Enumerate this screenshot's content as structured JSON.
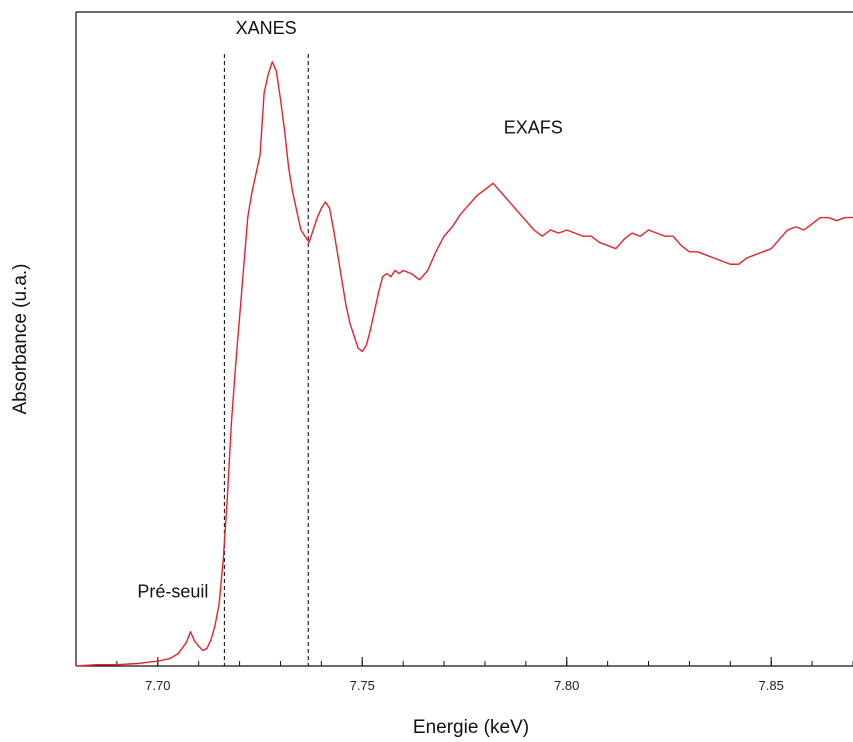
{
  "chart_data": {
    "type": "line",
    "title": "",
    "xlabel": "Energie (keV)",
    "ylabel": "Absorbance (u.a.)",
    "xlim": [
      7.68,
      7.87
    ],
    "ylim": [
      0,
      1.05
    ],
    "yticks_shown": false,
    "grid": false,
    "legend": "none",
    "xticks": [
      {
        "value": 7.7,
        "label": "7.70"
      },
      {
        "value": 7.75,
        "label": "7.75"
      },
      {
        "value": 7.8,
        "label": "7.80"
      },
      {
        "value": 7.85,
        "label": "7.85"
      }
    ],
    "minor_tick_step": 0.01,
    "annotations": [
      {
        "text": "XANES",
        "x": 7.7265,
        "y": 1.015
      },
      {
        "text": "EXAFS",
        "x": 7.7918,
        "y": 0.855
      },
      {
        "text": "Pré-seuil",
        "x": 7.7037,
        "y": 0.11
      }
    ],
    "region_boundaries": [
      7.7163,
      7.7368
    ],
    "series": [
      {
        "color": "#e8212b",
        "x": [
          7.68,
          7.685,
          7.69,
          7.695,
          7.7,
          7.703,
          7.705,
          7.707,
          7.708,
          7.709,
          7.71,
          7.711,
          7.712,
          7.713,
          7.714,
          7.715,
          7.716,
          7.717,
          7.718,
          7.719,
          7.72,
          7.721,
          7.722,
          7.723,
          7.724,
          7.725,
          7.726,
          7.727,
          7.728,
          7.729,
          7.73,
          7.731,
          7.732,
          7.733,
          7.734,
          7.735,
          7.736,
          7.737,
          7.738,
          7.739,
          7.74,
          7.741,
          7.742,
          7.743,
          7.744,
          7.745,
          7.746,
          7.747,
          7.748,
          7.749,
          7.75,
          7.751,
          7.752,
          7.753,
          7.754,
          7.755,
          7.756,
          7.757,
          7.758,
          7.759,
          7.76,
          7.762,
          7.764,
          7.766,
          7.768,
          7.77,
          7.772,
          7.774,
          7.776,
          7.778,
          7.78,
          7.782,
          7.784,
          7.786,
          7.788,
          7.79,
          7.792,
          7.794,
          7.796,
          7.798,
          7.8,
          7.802,
          7.804,
          7.806,
          7.808,
          7.81,
          7.812,
          7.814,
          7.816,
          7.818,
          7.82,
          7.822,
          7.824,
          7.826,
          7.828,
          7.83,
          7.832,
          7.834,
          7.836,
          7.838,
          7.84,
          7.842,
          7.844,
          7.846,
          7.848,
          7.85,
          7.852,
          7.854,
          7.856,
          7.858,
          7.86,
          7.862,
          7.864,
          7.866,
          7.868,
          7.87
        ],
        "y": [
          0.0,
          0.002,
          0.002,
          0.004,
          0.008,
          0.012,
          0.02,
          0.038,
          0.055,
          0.04,
          0.032,
          0.025,
          0.028,
          0.042,
          0.065,
          0.1,
          0.17,
          0.27,
          0.39,
          0.48,
          0.56,
          0.64,
          0.72,
          0.76,
          0.79,
          0.82,
          0.92,
          0.95,
          0.97,
          0.955,
          0.91,
          0.86,
          0.8,
          0.76,
          0.73,
          0.7,
          0.69,
          0.68,
          0.7,
          0.72,
          0.735,
          0.745,
          0.735,
          0.7,
          0.66,
          0.62,
          0.58,
          0.55,
          0.53,
          0.51,
          0.505,
          0.515,
          0.54,
          0.57,
          0.6,
          0.625,
          0.63,
          0.625,
          0.635,
          0.63,
          0.635,
          0.63,
          0.62,
          0.635,
          0.665,
          0.69,
          0.705,
          0.725,
          0.74,
          0.755,
          0.765,
          0.775,
          0.76,
          0.745,
          0.73,
          0.715,
          0.7,
          0.69,
          0.7,
          0.695,
          0.7,
          0.695,
          0.69,
          0.69,
          0.68,
          0.675,
          0.67,
          0.685,
          0.695,
          0.69,
          0.7,
          0.695,
          0.69,
          0.69,
          0.675,
          0.665,
          0.665,
          0.66,
          0.655,
          0.65,
          0.645,
          0.645,
          0.655,
          0.66,
          0.665,
          0.67,
          0.685,
          0.7,
          0.705,
          0.7,
          0.71,
          0.72,
          0.72,
          0.715,
          0.72,
          0.72
        ]
      }
    ]
  }
}
